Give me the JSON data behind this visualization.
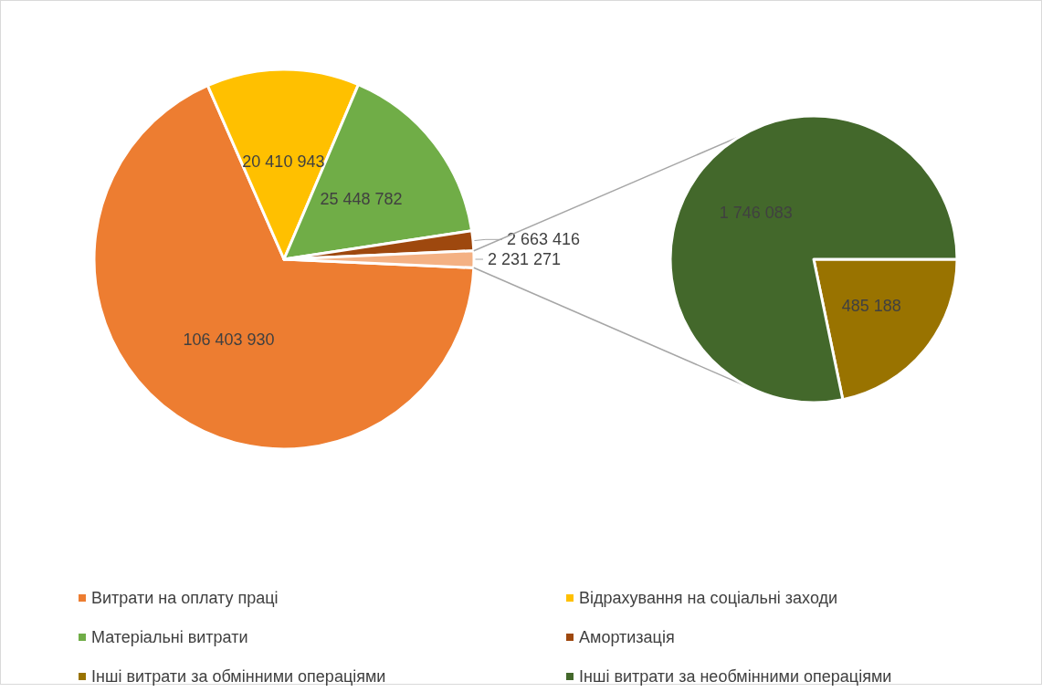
{
  "chart_data": [
    {
      "type": "pie",
      "categories": [
        "Витрати на оплату праці",
        "Відрахування на соціальні заходи",
        "Матеріальні витрати",
        "Амортизація",
        null
      ],
      "values": [
        106403930,
        20410943,
        25448782,
        2663416,
        2231271
      ],
      "colors": [
        "#ed7d31",
        "#ffc000",
        "#70ad47",
        "#9e480e",
        "#f4b183"
      ],
      "data_labels": true,
      "legend": "bottom"
    },
    {
      "type": "pie",
      "categories": [
        "Інші витрати за обмінними операціями",
        "Інші витрати за необмінними операціями"
      ],
      "values": [
        485188,
        1746083
      ],
      "colors": [
        "#997300",
        "#43682b"
      ],
      "data_labels": true,
      "legend": "bottom"
    }
  ]
}
